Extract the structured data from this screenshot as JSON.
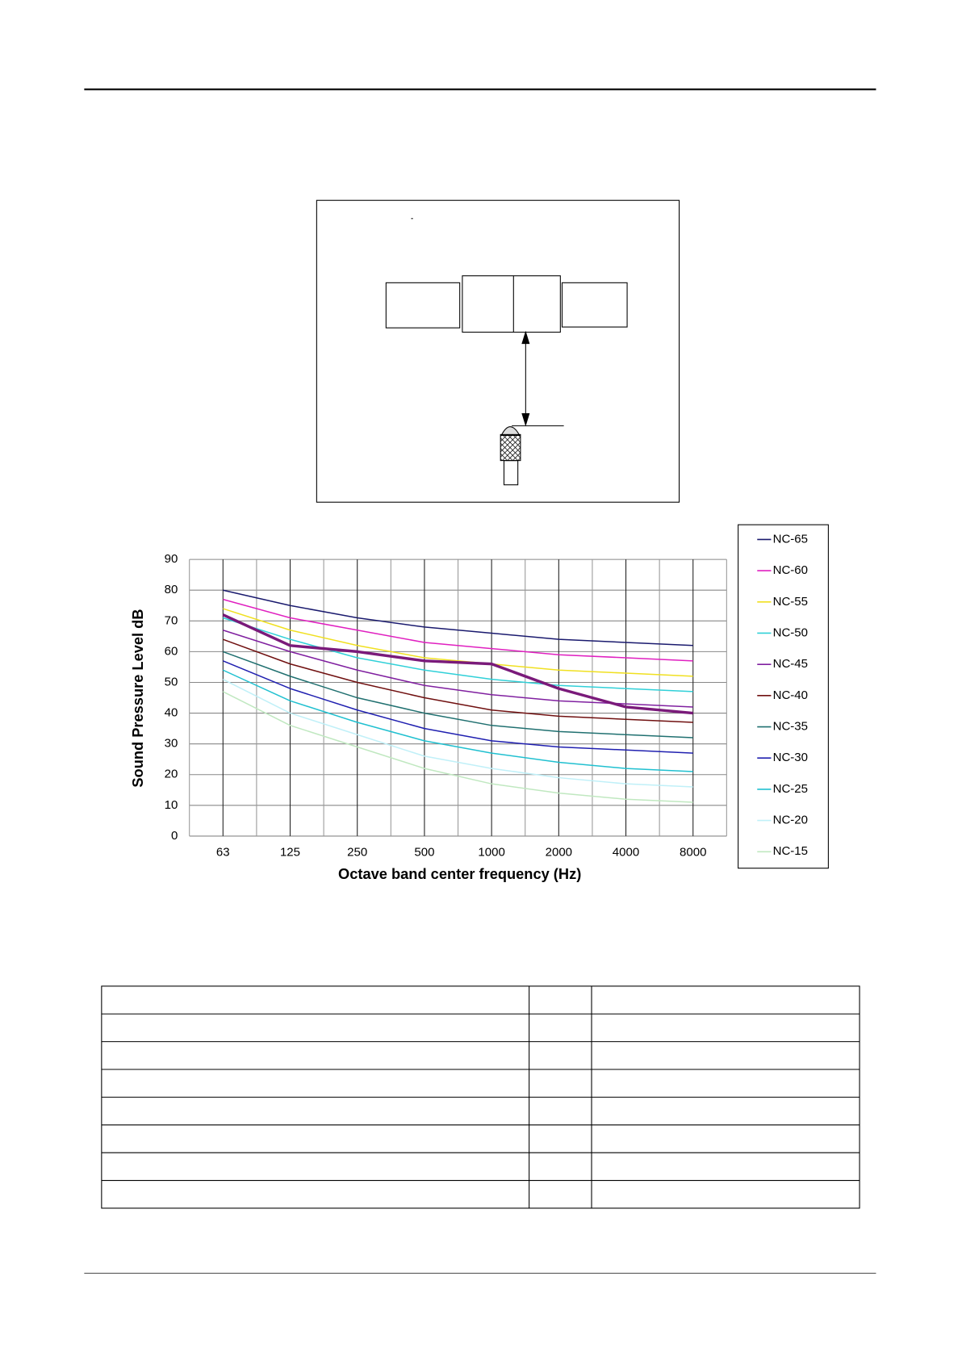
{
  "chart_data": {
    "type": "line",
    "x_label": "Octave band center frequency (Hz)",
    "y_label": "Sound Pressure Level dB",
    "categories": [
      "63",
      "125",
      "250",
      "500",
      "1000",
      "2000",
      "4000",
      "8000"
    ],
    "ylim": [
      0,
      90
    ],
    "yticks": [
      0,
      10,
      20,
      30,
      40,
      50,
      60,
      70,
      80,
      90
    ],
    "grid": true,
    "legend": "right",
    "series": [
      {
        "name": "NC-65",
        "color": "#1a1a6e",
        "values": [
          80,
          75,
          71,
          68,
          66,
          64,
          63,
          62
        ]
      },
      {
        "name": "NC-60",
        "color": "#e020c0",
        "values": [
          77,
          71,
          67,
          63,
          61,
          59,
          58,
          57
        ]
      },
      {
        "name": "NC-55",
        "color": "#f0e020",
        "values": [
          74,
          67,
          62,
          58,
          56,
          54,
          53,
          52
        ]
      },
      {
        "name": "NC-50",
        "color": "#30d0d8",
        "values": [
          71,
          64,
          58,
          54,
          51,
          49,
          48,
          47
        ]
      },
      {
        "name": "NC-45",
        "color": "#8020a0",
        "values": [
          67,
          60,
          54,
          49,
          46,
          44,
          43,
          42
        ]
      },
      {
        "name": "NC-40",
        "color": "#701010",
        "values": [
          64,
          56,
          50,
          45,
          41,
          39,
          38,
          37
        ]
      },
      {
        "name": "NC-35",
        "color": "#207070",
        "values": [
          60,
          52,
          45,
          40,
          36,
          34,
          33,
          32
        ]
      },
      {
        "name": "NC-30",
        "color": "#2020b0",
        "values": [
          57,
          48,
          41,
          35,
          31,
          29,
          28,
          27
        ]
      },
      {
        "name": "NC-25",
        "color": "#20c0d0",
        "values": [
          54,
          44,
          37,
          31,
          27,
          24,
          22,
          21
        ]
      },
      {
        "name": "NC-20",
        "color": "#c0f0f8",
        "values": [
          51,
          40,
          33,
          26,
          22,
          19,
          17,
          16
        ]
      },
      {
        "name": "NC-15",
        "color": "#c0e8c0",
        "values": [
          47,
          36,
          29,
          22,
          17,
          14,
          12,
          11
        ]
      },
      {
        "color": "#7a1a7a",
        "values": [
          72,
          62,
          60,
          57,
          56,
          48,
          42,
          40
        ]
      }
    ]
  }
}
